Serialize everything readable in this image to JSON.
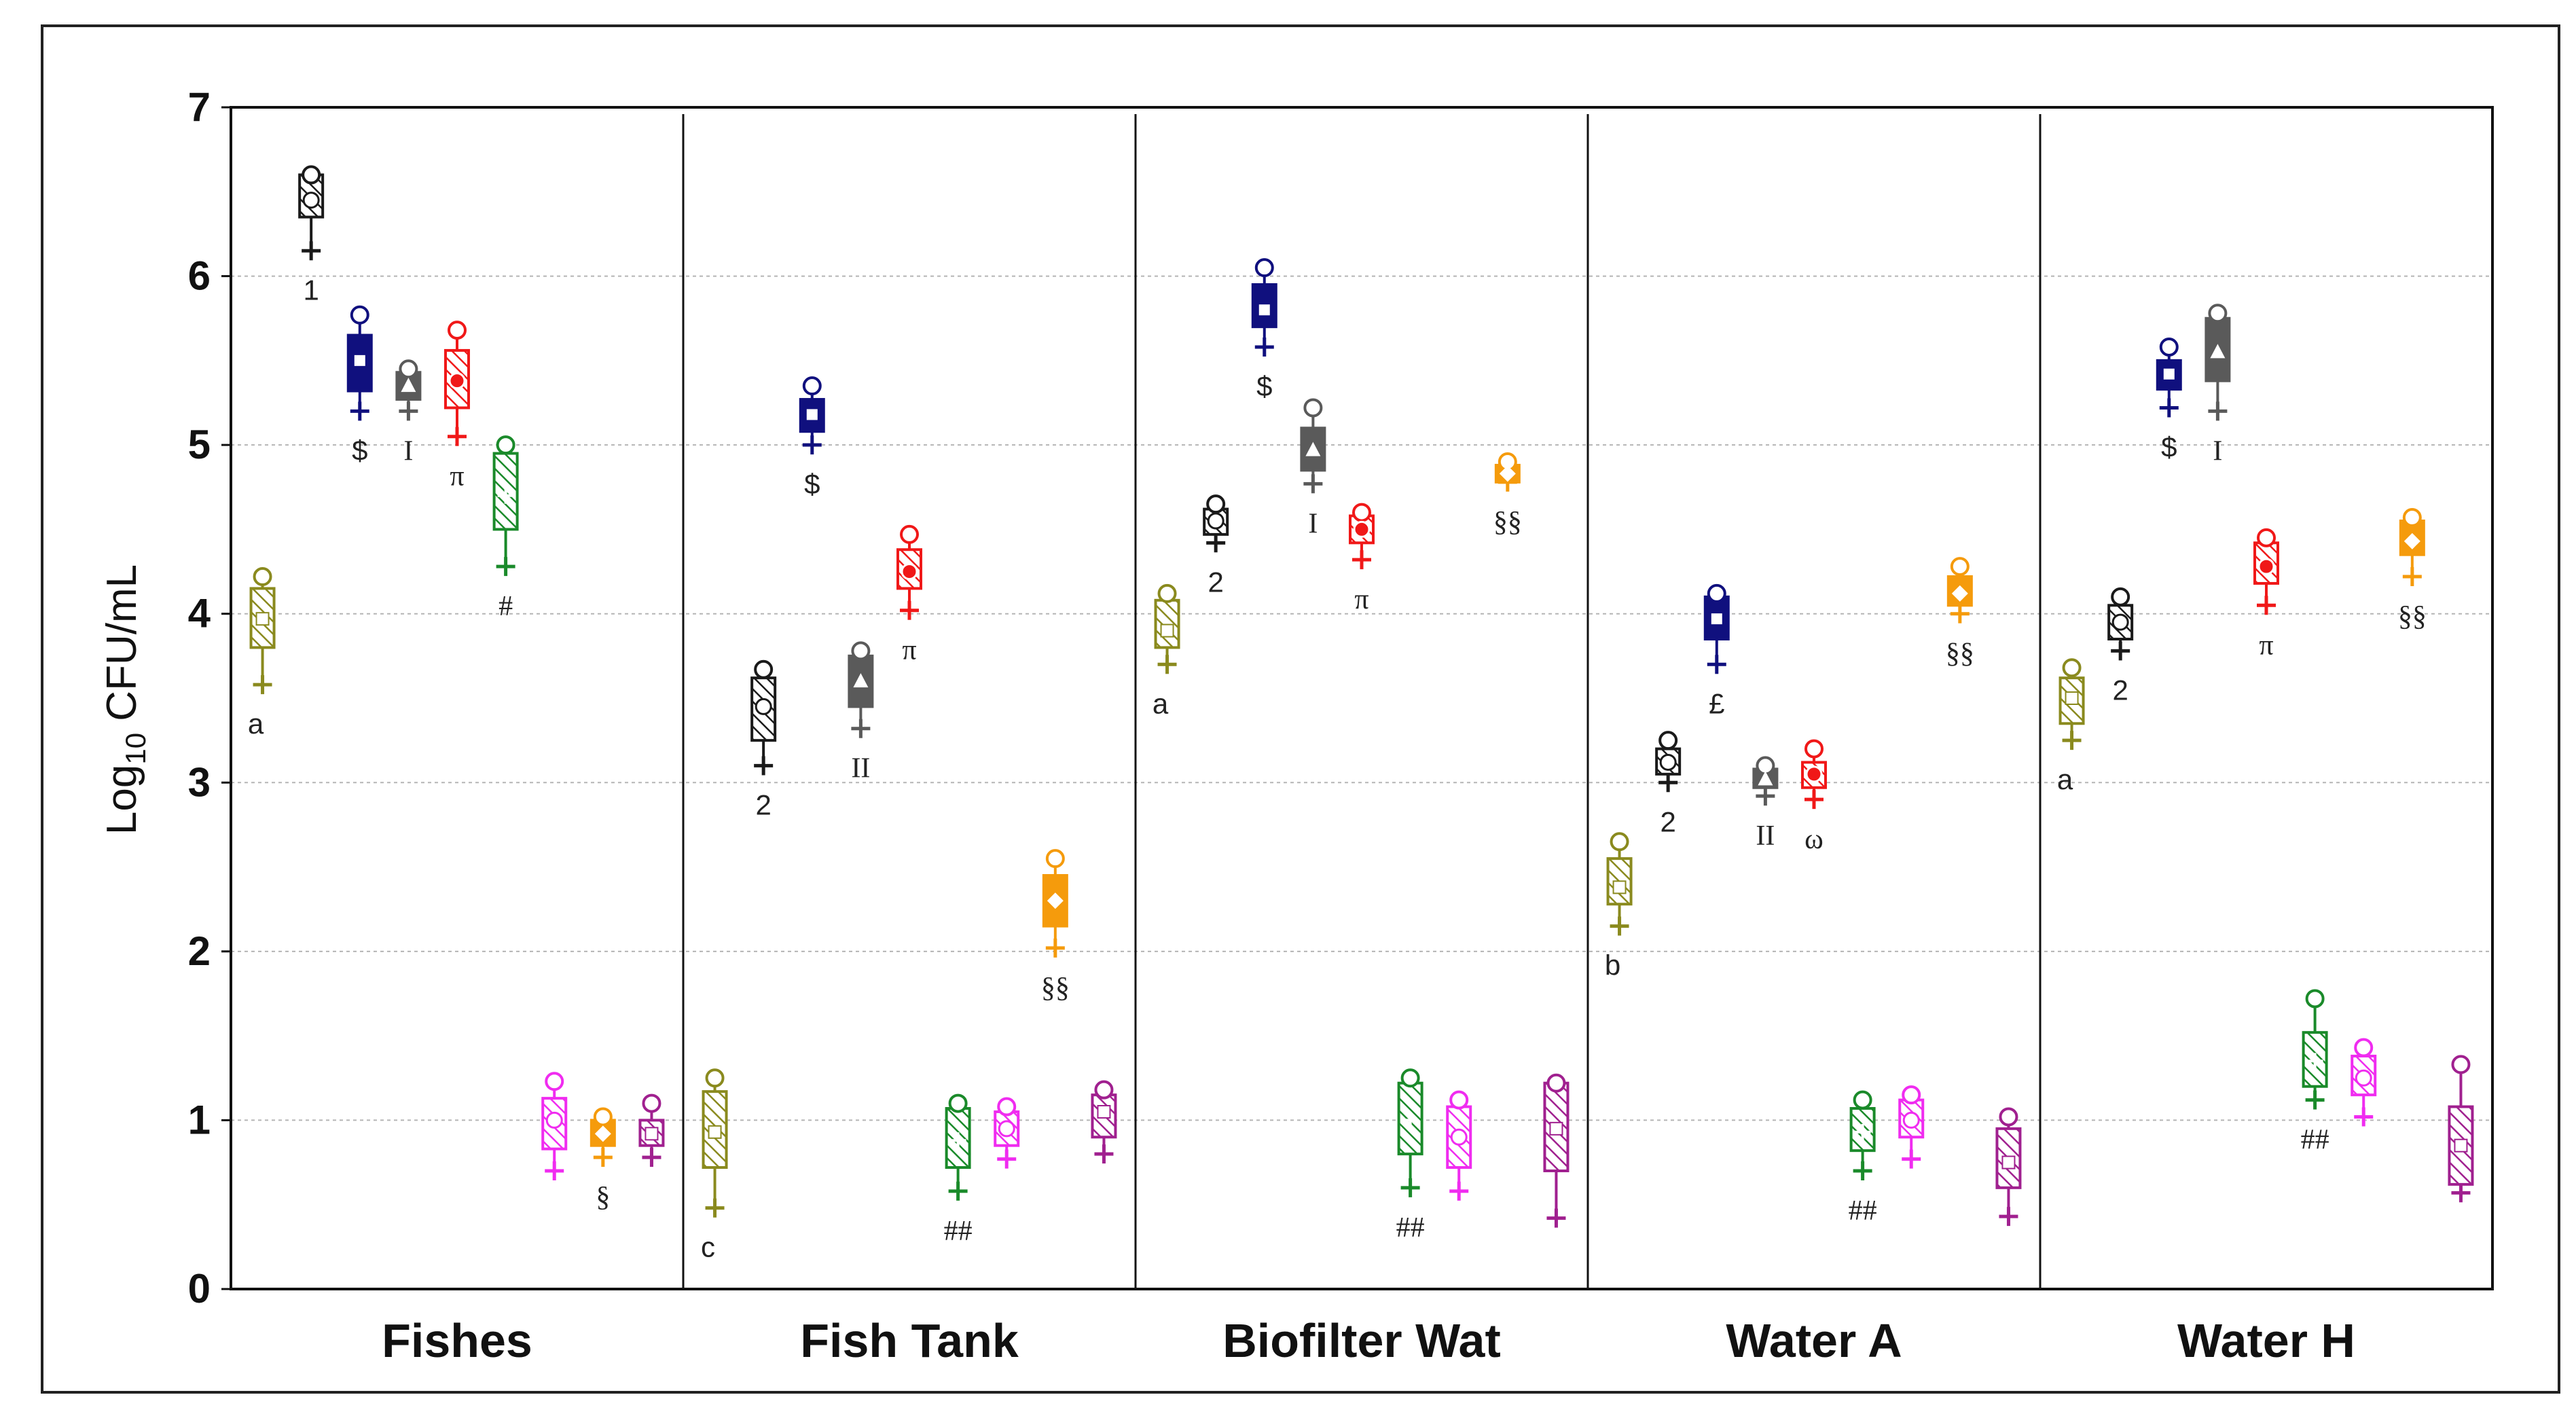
{
  "chart_data": {
    "type": "boxplot",
    "title": "",
    "ylabel": "Log10 CFU/mL",
    "ylabel_base": "Log",
    "ylabel_sub": "10",
    "ylabel_rest": " CFU/mL",
    "xlabel": "",
    "ylim": [
      0,
      7
    ],
    "yticks": [
      "0",
      "1",
      "2",
      "3",
      "4",
      "5",
      "6",
      "7"
    ],
    "grid": "horizontal dotted",
    "categories": [
      "Fishes",
      "Fish Tank",
      "Biofilter Wat",
      "Water A",
      "Water H"
    ],
    "series_colors": [
      "#8a8a1e",
      "#1a1a1a",
      "#10107e",
      "#5a5a5a",
      "#f01818",
      "#1a8a2a",
      "#f02cf0",
      "#f59b0c",
      "#a0208f"
    ],
    "groups": [
      {
        "category": "Fishes",
        "boxes": [
          {
            "series": 0,
            "q1": 3.8,
            "median": 3.97,
            "q3": 4.15,
            "upper": 4.22,
            "lower": 3.58,
            "label": "a"
          },
          {
            "series": 1,
            "q1": 6.35,
            "median": 6.45,
            "q3": 6.6,
            "upper": 6.6,
            "lower": 6.15,
            "label": "1"
          },
          {
            "series": 2,
            "q1": 5.32,
            "median": 5.5,
            "q3": 5.65,
            "upper": 5.77,
            "lower": 5.2,
            "label": "$"
          },
          {
            "series": 3,
            "q1": 5.27,
            "median": 5.35,
            "q3": 5.43,
            "upper": 5.45,
            "lower": 5.2,
            "label": "I"
          },
          {
            "series": 4,
            "q1": 5.22,
            "median": 5.38,
            "q3": 5.56,
            "upper": 5.68,
            "lower": 5.05,
            "label": "π"
          },
          {
            "series": 5,
            "q1": 4.5,
            "median": 4.7,
            "q3": 4.95,
            "upper": 5.0,
            "lower": 4.28,
            "label": "#"
          },
          {
            "series": 6,
            "q1": 0.83,
            "median": 1.0,
            "q3": 1.13,
            "upper": 1.23,
            "lower": 0.7,
            "label": ""
          },
          {
            "series": 7,
            "q1": 0.85,
            "median": 0.92,
            "q3": 1.0,
            "upper": 1.02,
            "lower": 0.78,
            "label": "§"
          },
          {
            "series": 8,
            "q1": 0.85,
            "median": 0.92,
            "q3": 1.0,
            "upper": 1.1,
            "lower": 0.78,
            "label": ""
          }
        ]
      },
      {
        "category": "Fish Tank",
        "boxes": [
          {
            "series": 0,
            "q1": 0.72,
            "median": 0.93,
            "q3": 1.17,
            "upper": 1.25,
            "lower": 0.48,
            "label": "c"
          },
          {
            "series": 1,
            "q1": 3.25,
            "median": 3.45,
            "q3": 3.62,
            "upper": 3.67,
            "lower": 3.1,
            "label": "2"
          },
          {
            "series": 2,
            "q1": 5.08,
            "median": 5.18,
            "q3": 5.27,
            "upper": 5.35,
            "lower": 5.0,
            "label": "$"
          },
          {
            "series": 3,
            "q1": 3.45,
            "median": 3.6,
            "q3": 3.75,
            "upper": 3.78,
            "lower": 3.32,
            "label": "II"
          },
          {
            "series": 4,
            "q1": 4.15,
            "median": 4.25,
            "q3": 4.38,
            "upper": 4.47,
            "lower": 4.02,
            "label": "π"
          },
          {
            "series": 5,
            "q1": 0.72,
            "median": 0.88,
            "q3": 1.07,
            "upper": 1.1,
            "lower": 0.58,
            "label": "##"
          },
          {
            "series": 6,
            "q1": 0.85,
            "median": 0.95,
            "q3": 1.05,
            "upper": 1.08,
            "lower": 0.77,
            "label": ""
          },
          {
            "series": 7,
            "q1": 2.15,
            "median": 2.3,
            "q3": 2.45,
            "upper": 2.55,
            "lower": 2.02,
            "label": "§§"
          },
          {
            "series": 8,
            "q1": 0.9,
            "median": 1.05,
            "q3": 1.15,
            "upper": 1.18,
            "lower": 0.8,
            "label": ""
          }
        ]
      },
      {
        "category": "Biofilter Wat",
        "boxes": [
          {
            "series": 0,
            "q1": 3.8,
            "median": 3.9,
            "q3": 4.08,
            "upper": 4.12,
            "lower": 3.7,
            "label": "a"
          },
          {
            "series": 1,
            "q1": 4.47,
            "median": 4.55,
            "q3": 4.62,
            "upper": 4.65,
            "lower": 4.42,
            "label": "2"
          },
          {
            "series": 2,
            "q1": 5.7,
            "median": 5.8,
            "q3": 5.95,
            "upper": 6.05,
            "lower": 5.58,
            "label": "$"
          },
          {
            "series": 3,
            "q1": 4.85,
            "median": 4.97,
            "q3": 5.1,
            "upper": 5.22,
            "lower": 4.77,
            "label": "I"
          },
          {
            "series": 4,
            "q1": 4.42,
            "median": 4.5,
            "q3": 4.58,
            "upper": 4.6,
            "lower": 4.32,
            "label": "π"
          },
          {
            "series": 5,
            "q1": 0.8,
            "median": 1.0,
            "q3": 1.22,
            "upper": 1.25,
            "lower": 0.6,
            "label": "##"
          },
          {
            "series": 6,
            "q1": 0.72,
            "median": 0.9,
            "q3": 1.08,
            "upper": 1.12,
            "lower": 0.58,
            "label": ""
          },
          {
            "series": 7,
            "q1": 4.78,
            "median": 4.83,
            "q3": 4.88,
            "upper": 4.9,
            "lower": 4.78,
            "label": "§§"
          },
          {
            "series": 8,
            "q1": 0.7,
            "median": 0.95,
            "q3": 1.22,
            "upper": 1.22,
            "lower": 0.42,
            "label": ""
          }
        ]
      },
      {
        "category": "Water A",
        "boxes": [
          {
            "series": 0,
            "q1": 2.28,
            "median": 2.38,
            "q3": 2.55,
            "upper": 2.65,
            "lower": 2.15,
            "label": "b"
          },
          {
            "series": 1,
            "q1": 3.05,
            "median": 3.12,
            "q3": 3.2,
            "upper": 3.25,
            "lower": 3.0,
            "label": "2"
          },
          {
            "series": 2,
            "q1": 3.85,
            "median": 3.97,
            "q3": 4.1,
            "upper": 4.12,
            "lower": 3.7,
            "label": "£"
          },
          {
            "series": 3,
            "q1": 2.97,
            "median": 3.02,
            "q3": 3.08,
            "upper": 3.1,
            "lower": 2.92,
            "label": "II"
          },
          {
            "series": 4,
            "q1": 2.97,
            "median": 3.05,
            "q3": 3.12,
            "upper": 3.2,
            "lower": 2.9,
            "label": "ω"
          },
          {
            "series": 5,
            "q1": 0.82,
            "median": 0.93,
            "q3": 1.07,
            "upper": 1.12,
            "lower": 0.7,
            "label": "##"
          },
          {
            "series": 6,
            "q1": 0.9,
            "median": 1.0,
            "q3": 1.12,
            "upper": 1.15,
            "lower": 0.77,
            "label": ""
          },
          {
            "series": 7,
            "q1": 4.05,
            "median": 4.12,
            "q3": 4.22,
            "upper": 4.28,
            "lower": 4.0,
            "label": "§§"
          },
          {
            "series": 8,
            "q1": 0.6,
            "median": 0.75,
            "q3": 0.95,
            "upper": 1.02,
            "lower": 0.43,
            "label": ""
          }
        ]
      },
      {
        "category": "Water H",
        "boxes": [
          {
            "series": 0,
            "q1": 3.35,
            "median": 3.5,
            "q3": 3.62,
            "upper": 3.68,
            "lower": 3.25,
            "label": "a"
          },
          {
            "series": 1,
            "q1": 3.85,
            "median": 3.95,
            "q3": 4.05,
            "upper": 4.1,
            "lower": 3.78,
            "label": "2"
          },
          {
            "series": 2,
            "q1": 5.33,
            "median": 5.42,
            "q3": 5.5,
            "upper": 5.58,
            "lower": 5.22,
            "label": "$"
          },
          {
            "series": 3,
            "q1": 5.38,
            "median": 5.55,
            "q3": 5.75,
            "upper": 5.78,
            "lower": 5.2,
            "label": "I"
          },
          {
            "series": 4,
            "q1": 4.18,
            "median": 4.28,
            "q3": 4.42,
            "upper": 4.45,
            "lower": 4.05,
            "label": "π"
          },
          {
            "series": 5,
            "q1": 1.2,
            "median": 1.35,
            "q3": 1.52,
            "upper": 1.72,
            "lower": 1.12,
            "label": "##"
          },
          {
            "series": 6,
            "q1": 1.15,
            "median": 1.25,
            "q3": 1.38,
            "upper": 1.43,
            "lower": 1.02,
            "label": ""
          },
          {
            "series": 7,
            "q1": 4.35,
            "median": 4.43,
            "q3": 4.55,
            "upper": 4.57,
            "lower": 4.22,
            "label": "§§"
          },
          {
            "series": 8,
            "q1": 0.62,
            "median": 0.85,
            "q3": 1.08,
            "upper": 1.33,
            "lower": 0.57,
            "label": ""
          }
        ]
      }
    ]
  }
}
